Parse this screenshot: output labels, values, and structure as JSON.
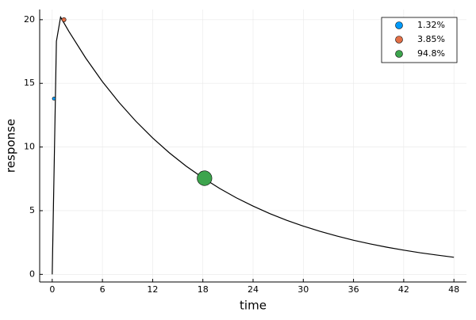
{
  "chart_data": {
    "type": "line",
    "x_label": "time",
    "y_label": "response",
    "x": [
      0,
      0.5,
      1,
      2,
      4,
      6,
      8,
      10,
      12,
      14,
      16,
      18,
      20,
      22,
      24,
      26,
      28,
      30,
      32,
      34,
      36,
      38,
      40,
      42,
      44,
      46,
      48
    ],
    "values": [
      0,
      18.3,
      20.2,
      19.07,
      16.99,
      15.13,
      13.49,
      12.02,
      10.71,
      9.54,
      8.5,
      7.58,
      6.75,
      6.01,
      5.36,
      4.77,
      4.25,
      3.79,
      3.38,
      3.01,
      2.68,
      2.39,
      2.13,
      1.9,
      1.69,
      1.51,
      1.34
    ],
    "color": "#000000",
    "points": [
      {
        "name": "1.32%",
        "size": 1.32,
        "color": "#009af9",
        "x": 0.2,
        "y": 13.8
      },
      {
        "name": "3.85%",
        "size": 3.85,
        "color": "#e26f46",
        "x": 1.4,
        "y": 20.0
      },
      {
        "name": "94.8%",
        "size": 94.8,
        "color": "#3da44d",
        "x": 18.2,
        "y": 7.55
      }
    ],
    "xlim": [
      -1.5,
      49.5
    ],
    "ylim": [
      -0.6,
      20.8
    ],
    "xticks": [
      0,
      6,
      12,
      18,
      24,
      30,
      36,
      42,
      48
    ],
    "yticks": [
      0,
      5,
      10,
      15,
      20
    ],
    "grid": true,
    "legend": "top-right"
  }
}
